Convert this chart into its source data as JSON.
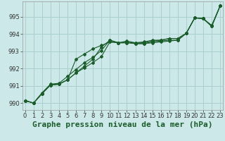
{
  "title": "Graphe pression niveau de la mer (hPa)",
  "bg_color": "#cce8e8",
  "grid_color": "#aacfcf",
  "line_color": "#1a5c2a",
  "xlim": [
    -0.3,
    23.3
  ],
  "ylim": [
    989.6,
    995.9
  ],
  "yticks": [
    990,
    991,
    992,
    993,
    994,
    995
  ],
  "xticks": [
    0,
    1,
    2,
    3,
    4,
    5,
    6,
    7,
    8,
    9,
    10,
    11,
    12,
    13,
    14,
    15,
    16,
    17,
    18,
    19,
    20,
    21,
    22,
    23
  ],
  "series": [
    [
      990.15,
      990.0,
      990.55,
      991.05,
      991.1,
      991.35,
      991.75,
      992.05,
      992.35,
      992.7,
      993.55,
      993.5,
      993.55,
      993.45,
      993.45,
      993.55,
      993.6,
      993.65,
      993.65,
      994.05,
      994.95,
      994.9,
      994.45,
      995.65
    ],
    [
      990.15,
      990.0,
      990.55,
      991.05,
      991.1,
      991.35,
      992.55,
      992.85,
      993.15,
      993.35,
      993.55,
      993.5,
      993.5,
      993.45,
      993.45,
      993.5,
      993.55,
      993.6,
      993.65,
      994.05,
      994.95,
      994.9,
      994.45,
      995.65
    ],
    [
      990.15,
      990.0,
      990.6,
      991.1,
      991.15,
      991.55,
      991.95,
      992.35,
      992.65,
      993.05,
      993.65,
      993.5,
      993.6,
      993.5,
      993.55,
      993.65,
      993.65,
      993.75,
      993.75,
      994.05,
      994.95,
      994.9,
      994.5,
      995.65
    ],
    [
      990.15,
      990.0,
      990.55,
      991.05,
      991.1,
      991.35,
      991.75,
      992.15,
      992.55,
      993.25,
      993.65,
      993.5,
      993.5,
      993.5,
      993.5,
      993.6,
      993.65,
      993.75,
      993.75,
      994.05,
      994.95,
      994.9,
      994.5,
      995.65
    ]
  ],
  "title_fontsize": 8,
  "tick_fontsize": 6
}
